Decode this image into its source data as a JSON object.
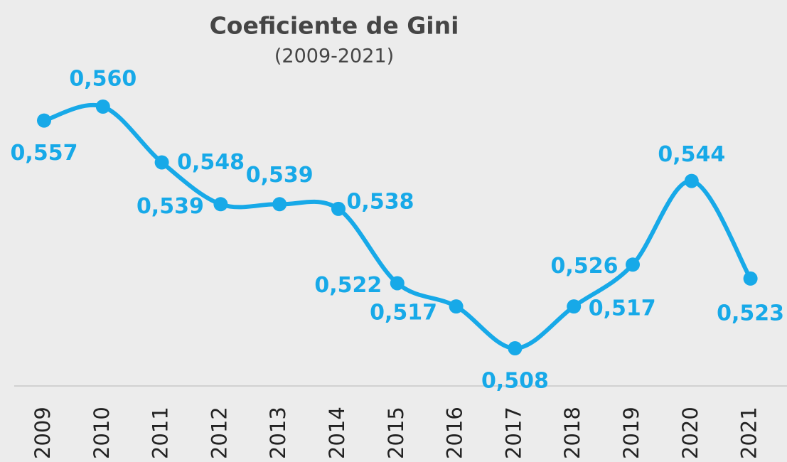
{
  "chart_data": {
    "type": "line",
    "title": "Coeficiente de Gini",
    "subtitle": "(2009-2021)",
    "categories": [
      "2009",
      "2010",
      "2011",
      "2012",
      "2013",
      "2014",
      "2015",
      "2016",
      "2017",
      "2018",
      "2019",
      "2020",
      "2021"
    ],
    "values": [
      0.557,
      0.56,
      0.548,
      0.539,
      0.539,
      0.538,
      0.522,
      0.517,
      0.508,
      0.517,
      0.526,
      0.544,
      0.523
    ],
    "value_labels": [
      "0,557",
      "0,560",
      "0,548",
      "0,539",
      "0,539",
      "0,538",
      "0,522",
      "0,517",
      "0,508",
      "0,517",
      "0,526",
      "0,544",
      "0,523"
    ],
    "color": "#17a9e8"
  }
}
